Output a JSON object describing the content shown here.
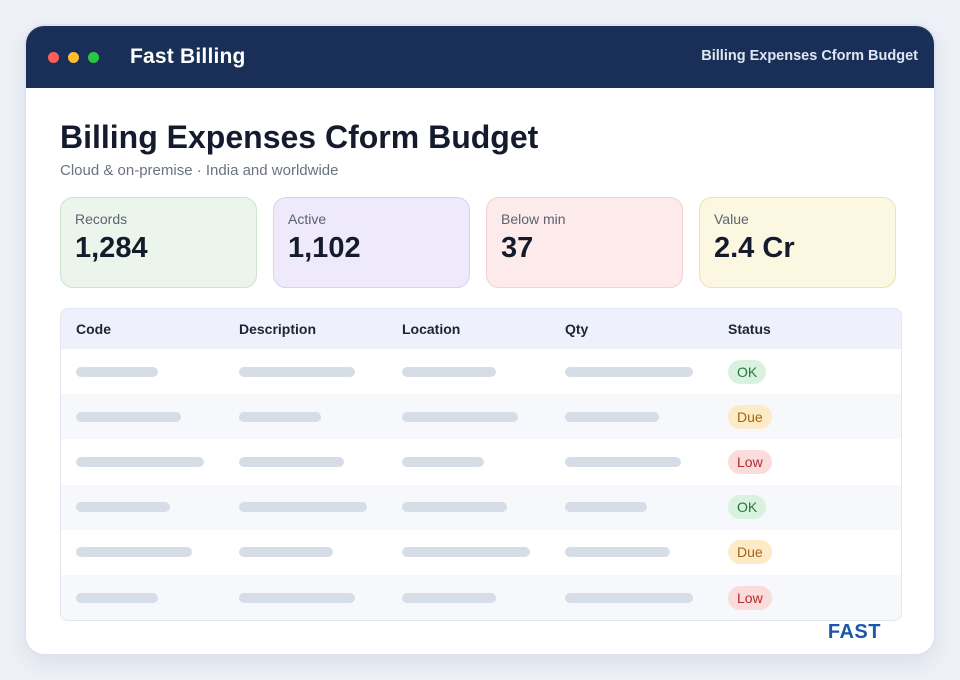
{
  "app": {
    "title": "Fast Billing",
    "window_subtitle": "Billing Expenses Cform Budget"
  },
  "page": {
    "title": "Billing Expenses Cform Budget",
    "subtitle": "Cloud & on-premise · India and worldwide"
  },
  "stats": [
    {
      "label": "Records",
      "value": "1,284",
      "bg": "#ecf5ec",
      "border": "#cfe3cf"
    },
    {
      "label": "Active",
      "value": "1,102",
      "bg": "#eeeafb",
      "border": "#d8d1f2"
    },
    {
      "label": "Below min",
      "value": "37",
      "bg": "#fcebea",
      "border": "#f1d2cf"
    },
    {
      "label": "Value",
      "value": "2.4 Cr",
      "bg": "#fcf7e1",
      "border": "#ece1b8"
    }
  ],
  "table": {
    "headers": [
      "Code",
      "Description",
      "Location",
      "Qty",
      "Status"
    ],
    "rows": [
      {
        "status": "OK"
      },
      {
        "status": "Due"
      },
      {
        "status": "Low"
      },
      {
        "status": "OK"
      },
      {
        "status": "Due"
      },
      {
        "status": "Low"
      }
    ]
  },
  "status_colors": {
    "OK": {
      "bg": "#d9f1df",
      "fg": "#237a3c"
    },
    "Due": {
      "bg": "#fdebc8",
      "fg": "#a8620c"
    },
    "Low": {
      "bg": "#fbdcdc",
      "fg": "#b52a2a"
    }
  },
  "logo": {
    "text": "FAST",
    "color": "#1b57a6"
  },
  "colors": {
    "titlebar": "#1a2f57",
    "dot_red": "#ff5f57",
    "dot_yellow": "#febc2e",
    "dot_green": "#28c840"
  }
}
